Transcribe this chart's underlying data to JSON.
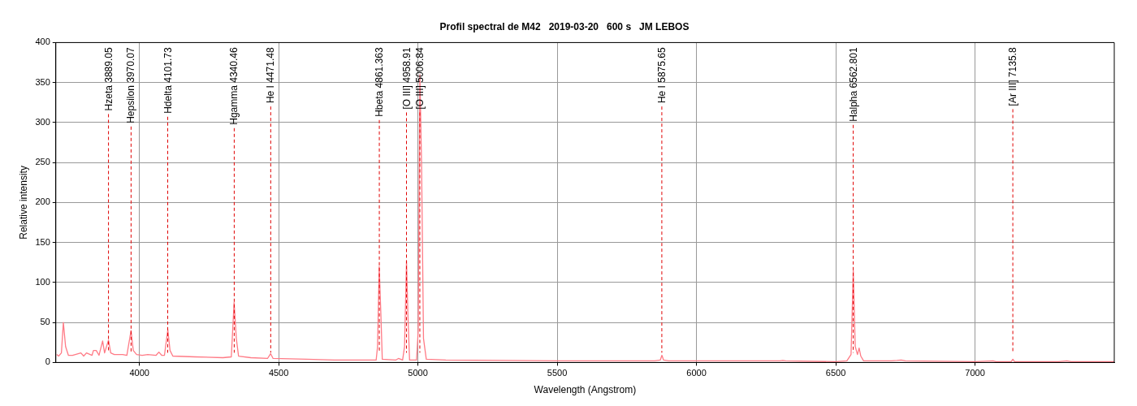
{
  "chart_data": {
    "type": "line",
    "title": "Profil spectral de M42   2019-03-20   600 s   JM LEBOS",
    "xlabel": "Wavelength (Angstrom)",
    "ylabel": "Relative intensity",
    "xlim": [
      3700,
      7500
    ],
    "xticks": [
      4000,
      4500,
      5000,
      5500,
      6000,
      6500,
      7000
    ],
    "ylim": [
      0,
      400
    ],
    "yticks": [
      0,
      50,
      100,
      150,
      200,
      250,
      300,
      350,
      400
    ],
    "grid": true,
    "legend": false,
    "marker": "none",
    "line_style": "solid",
    "series": [
      {
        "color": "#ff7b86",
        "x": [
          3703,
          3710,
          3720,
          3727,
          3735,
          3745,
          3760,
          3790,
          3800,
          3810,
          3830,
          3835,
          3845,
          3855,
          3868,
          3875,
          3889,
          3897,
          3910,
          3940,
          3955,
          3970,
          3978,
          3990,
          4010,
          4030,
          4060,
          4070,
          4080,
          4090,
          4102,
          4110,
          4120,
          4200,
          4300,
          4330,
          4340,
          4348,
          4356,
          4400,
          4460,
          4471,
          4480,
          4600,
          4700,
          4800,
          4850,
          4855,
          4861,
          4867,
          4872,
          4920,
          4930,
          4945,
          4952,
          4959,
          4964,
          4970,
          4995,
          5001,
          5007,
          5013,
          5020,
          5030,
          5100,
          5500,
          5850,
          5870,
          5876,
          5882,
          5900,
          6300,
          6310,
          6320,
          6500,
          6540,
          6555,
          6563,
          6570,
          6578,
          6584,
          6590,
          6600,
          6700,
          6720,
          6735,
          6750,
          7000,
          7065,
          7075,
          7130,
          7136,
          7142,
          7300,
          7330,
          7345,
          7500
        ],
        "values": [
          10,
          8,
          12,
          50,
          20,
          9,
          9,
          12,
          8,
          12,
          9,
          15,
          15,
          9,
          27,
          12,
          28,
          12,
          10,
          10,
          9,
          40,
          15,
          10,
          9,
          10,
          9,
          13,
          9,
          9,
          41,
          15,
          8,
          7,
          6,
          7,
          75,
          30,
          8,
          6,
          5,
          11,
          5,
          4,
          3,
          3,
          3,
          20,
          120,
          60,
          4,
          3,
          5,
          3,
          20,
          127,
          60,
          3,
          3,
          40,
          360,
          250,
          30,
          4,
          3,
          2,
          2,
          3,
          9,
          3,
          2,
          2,
          2.5,
          2,
          1,
          2,
          10,
          115,
          20,
          10,
          18,
          8,
          2,
          2,
          2.5,
          3,
          2,
          1,
          2,
          1,
          1,
          4,
          1,
          1,
          2,
          1,
          1
        ]
      }
    ],
    "ref_lines": [
      {
        "axis": "x",
        "value": 3889.05,
        "label": "Hzeta 3889.05",
        "color": "#e00000",
        "line_style": "dashed"
      },
      {
        "axis": "x",
        "value": 3970.07,
        "label": "Hepsilon 3970.07",
        "color": "#e00000",
        "line_style": "dashed"
      },
      {
        "axis": "x",
        "value": 4101.73,
        "label": "Hdelta 4101.73",
        "color": "#e00000",
        "line_style": "dashed"
      },
      {
        "axis": "x",
        "value": 4340.46,
        "label": "Hgamma 4340.46",
        "color": "#e00000",
        "line_style": "dashed"
      },
      {
        "axis": "x",
        "value": 4471.48,
        "label": "He I 4471.48",
        "color": "#e00000",
        "line_style": "dashed"
      },
      {
        "axis": "x",
        "value": 4861.363,
        "label": "Hbeta 4861.363",
        "color": "#e00000",
        "line_style": "dashed"
      },
      {
        "axis": "x",
        "value": 4958.91,
        "label": "[O III] 4958.91",
        "color": "#e00000",
        "line_style": "dashed"
      },
      {
        "axis": "x",
        "value": 5006.84,
        "label": "[O III] 5006.84",
        "color": "#e00000",
        "line_style": "dashed"
      },
      {
        "axis": "x",
        "value": 5875.65,
        "label": "He I 5875.65",
        "color": "#e00000",
        "line_style": "dashed"
      },
      {
        "axis": "x",
        "value": 6562.801,
        "label": "Halpha 6562.801",
        "color": "#e00000",
        "line_style": "dashed"
      },
      {
        "axis": "x",
        "value": 7135.8,
        "label": "[Ar III] 7135.8",
        "color": "#e00000",
        "line_style": "dashed"
      }
    ]
  }
}
